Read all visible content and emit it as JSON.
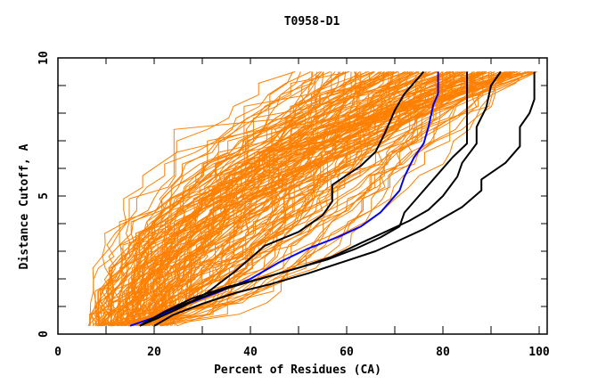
{
  "chart_data": {
    "type": "line",
    "title": "T0958-D1",
    "xlabel": "Percent of Residues (CA)",
    "ylabel": "Distance Cutoff, A",
    "xlim": [
      0,
      100
    ],
    "ylim": [
      0,
      10
    ],
    "x_ticks": [
      0,
      20,
      40,
      60,
      80,
      100
    ],
    "y_ticks": [
      0,
      5,
      10
    ],
    "x_minor_step": 10,
    "y_minor_step": 1,
    "grid": false,
    "legend": "none",
    "background_series": {
      "name": "all models",
      "color": "#ff8000",
      "count": 160,
      "note": "GDT-style cumulative curves for all submitted models",
      "y_start": 0.3,
      "y_end": 9.5,
      "start_percent_range": [
        7,
        24
      ],
      "end_percent_range": [
        45,
        100
      ]
    },
    "series": [
      {
        "name": "highlighted model (blue)",
        "color": "#0000ff",
        "points": [
          [
            15,
            0.3
          ],
          [
            20,
            0.6
          ],
          [
            27,
            1.1
          ],
          [
            33,
            1.5
          ],
          [
            40,
            2.0
          ],
          [
            46,
            2.6
          ],
          [
            52,
            3.1
          ],
          [
            58,
            3.5
          ],
          [
            63,
            3.9
          ],
          [
            67,
            4.4
          ],
          [
            69,
            4.8
          ],
          [
            71,
            5.2
          ],
          [
            72,
            5.7
          ],
          [
            74,
            6.4
          ],
          [
            76,
            6.9
          ],
          [
            77,
            7.5
          ],
          [
            78,
            8.3
          ],
          [
            79,
            8.7
          ],
          [
            79,
            9.5
          ]
        ]
      },
      {
        "name": "reference model 1 (black)",
        "color": "#000000",
        "points": [
          [
            17,
            0.3
          ],
          [
            21,
            0.6
          ],
          [
            26,
            1.0
          ],
          [
            31,
            1.5
          ],
          [
            37,
            2.3
          ],
          [
            43,
            3.2
          ],
          [
            50,
            3.7
          ],
          [
            55,
            4.3
          ],
          [
            57,
            4.8
          ],
          [
            57,
            5.4
          ],
          [
            63,
            6.1
          ],
          [
            66,
            6.6
          ],
          [
            68,
            7.3
          ],
          [
            70,
            8.1
          ],
          [
            72,
            8.7
          ],
          [
            76,
            9.5
          ]
        ]
      },
      {
        "name": "reference model 2 (black)",
        "color": "#000000",
        "points": [
          [
            17,
            0.3
          ],
          [
            22,
            0.8
          ],
          [
            28,
            1.2
          ],
          [
            34,
            1.6
          ],
          [
            40,
            1.9
          ],
          [
            48,
            2.3
          ],
          [
            56,
            2.7
          ],
          [
            62,
            3.1
          ],
          [
            67,
            3.5
          ],
          [
            71,
            3.9
          ],
          [
            72,
            4.4
          ],
          [
            75,
            5.0
          ],
          [
            79,
            5.8
          ],
          [
            82,
            6.4
          ],
          [
            85,
            6.9
          ],
          [
            85,
            7.5
          ],
          [
            85,
            8.3
          ],
          [
            85,
            9.5
          ]
        ]
      },
      {
        "name": "reference model 3 (black)",
        "color": "#000000",
        "points": [
          [
            17,
            0.3
          ],
          [
            22,
            0.8
          ],
          [
            28,
            1.3
          ],
          [
            35,
            1.7
          ],
          [
            42,
            2.0
          ],
          [
            50,
            2.4
          ],
          [
            57,
            2.8
          ],
          [
            63,
            3.3
          ],
          [
            68,
            3.7
          ],
          [
            73,
            4.1
          ],
          [
            77,
            4.5
          ],
          [
            80,
            5.0
          ],
          [
            83,
            5.7
          ],
          [
            84,
            6.2
          ],
          [
            87,
            6.9
          ],
          [
            87,
            7.5
          ],
          [
            89,
            8.2
          ],
          [
            90,
            9.0
          ],
          [
            92,
            9.5
          ]
        ]
      },
      {
        "name": "reference model 4 (black)",
        "color": "#000000",
        "points": [
          [
            20,
            0.3
          ],
          [
            24,
            0.7
          ],
          [
            30,
            1.1
          ],
          [
            37,
            1.5
          ],
          [
            44,
            1.8
          ],
          [
            52,
            2.2
          ],
          [
            59,
            2.6
          ],
          [
            66,
            3.0
          ],
          [
            71,
            3.4
          ],
          [
            76,
            3.8
          ],
          [
            80,
            4.2
          ],
          [
            84,
            4.6
          ],
          [
            88,
            5.2
          ],
          [
            88,
            5.6
          ],
          [
            93,
            6.2
          ],
          [
            96,
            6.8
          ],
          [
            96,
            7.5
          ],
          [
            98,
            8.0
          ],
          [
            99,
            8.5
          ],
          [
            99,
            9.5
          ]
        ]
      }
    ]
  }
}
